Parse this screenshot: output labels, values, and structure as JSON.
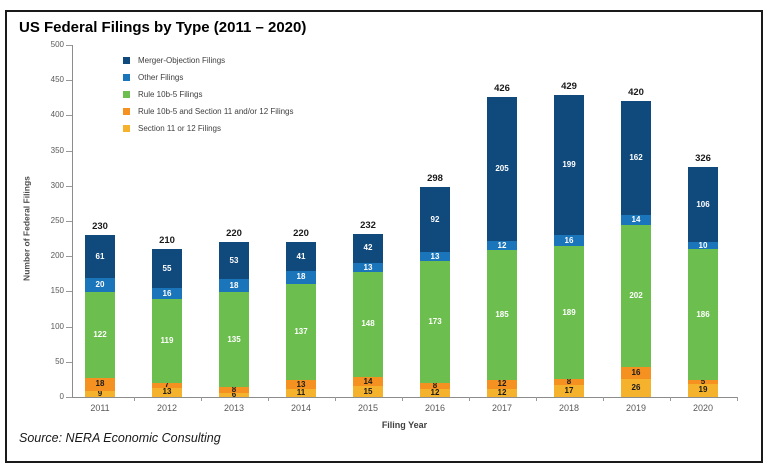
{
  "title": "US Federal Filings by Type (2011 – 2020)",
  "source_note": "Source: NERA Economic Consulting",
  "chart_data": {
    "type": "bar",
    "stacked": true,
    "title": "US Federal Filings by Type (2011 – 2020)",
    "xlabel": "Filing Year",
    "ylabel": "Number of Federal Filings",
    "ylim": [
      0,
      500
    ],
    "yticks": [
      0,
      50,
      100,
      150,
      200,
      250,
      300,
      350,
      400,
      450,
      500
    ],
    "grid": false,
    "legend_position": "top-left-inside",
    "categories": [
      "2011",
      "2012",
      "2013",
      "2014",
      "2015",
      "2016",
      "2017",
      "2018",
      "2019",
      "2020"
    ],
    "series": [
      {
        "name": "Section 11 or 12 Filings",
        "color": "#F5B32D",
        "label_color": "#1a1a1a",
        "values": [
          9,
          13,
          6,
          11,
          15,
          12,
          12,
          17,
          26,
          19
        ]
      },
      {
        "name": "Rule 10b-5 and Section 11 and/or 12 Filings",
        "color": "#F59120",
        "label_color": "#1a1a1a",
        "values": [
          18,
          7,
          8,
          13,
          14,
          8,
          12,
          8,
          16,
          5
        ]
      },
      {
        "name": "Rule 10b-5 Filings",
        "color": "#6CBE4E",
        "label_color": "#ffffff",
        "values": [
          122,
          119,
          135,
          137,
          148,
          173,
          185,
          189,
          202,
          186
        ]
      },
      {
        "name": "Other Filings",
        "color": "#1B75BB",
        "label_color": "#ffffff",
        "values": [
          20,
          16,
          18,
          18,
          13,
          13,
          12,
          16,
          14,
          10
        ]
      },
      {
        "name": "Merger-Objection Filings",
        "color": "#10497C",
        "label_color": "#ffffff",
        "values": [
          61,
          55,
          53,
          41,
          42,
          92,
          205,
          199,
          162,
          106
        ]
      }
    ],
    "totals": [
      230,
      210,
      220,
      220,
      232,
      298,
      426,
      429,
      420,
      326
    ]
  }
}
